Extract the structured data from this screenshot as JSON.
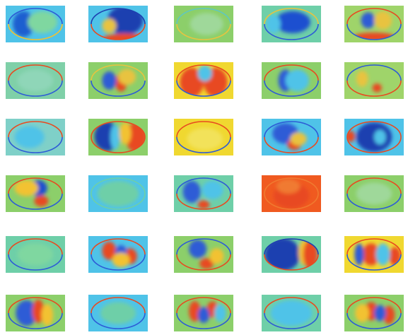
{
  "colormap": "jet",
  "grid": {
    "rows": 6,
    "cols": 5
  },
  "tiles": [
    {
      "bg": "#4fc3e8",
      "blobs": [
        [
          "#1f5fd0",
          0.3,
          0.5,
          0.18,
          0.35
        ],
        [
          "#7fd7a0",
          0.62,
          0.45,
          0.25,
          0.3
        ]
      ],
      "rim": [
        "#2d5bd6",
        "#f2c230"
      ]
    },
    {
      "bg": "#4fc3e8",
      "blobs": [
        [
          "#1d3fb0",
          0.62,
          0.4,
          0.3,
          0.4
        ],
        [
          "#e8c340",
          0.35,
          0.55,
          0.12,
          0.2
        ],
        [
          "#e84a20",
          0.6,
          0.88,
          0.35,
          0.12
        ]
      ],
      "rim": [
        "#1d3fb0",
        "#e84a20"
      ]
    },
    {
      "bg": "#8ccf6a",
      "blobs": [
        [
          "#9fd89a",
          0.55,
          0.5,
          0.28,
          0.3
        ]
      ],
      "rim": [
        "#5fc7c0",
        "#e8c340"
      ]
    },
    {
      "bg": "#6ecfa8",
      "blobs": [
        [
          "#1f4fd0",
          0.52,
          0.45,
          0.3,
          0.3
        ],
        [
          "#4fc3e8",
          0.2,
          0.5,
          0.12,
          0.25
        ]
      ],
      "rim": [
        "#e8c340",
        "#2d5bd6"
      ]
    },
    {
      "bg": "#9fd46a",
      "blobs": [
        [
          "#e84a20",
          0.5,
          0.85,
          0.35,
          0.12
        ],
        [
          "#2d5bd6",
          0.4,
          0.4,
          0.12,
          0.22
        ],
        [
          "#e8c340",
          0.65,
          0.4,
          0.15,
          0.25
        ]
      ],
      "rim": [
        "#e84a20",
        "#2d5bd6"
      ]
    },
    {
      "bg": "#7fd0a8",
      "blobs": [
        [
          "#8fd6b8",
          0.5,
          0.5,
          0.3,
          0.3
        ]
      ],
      "rim": [
        "#e84a20",
        "#2d5bd6"
      ]
    },
    {
      "bg": "#8ccf6a",
      "blobs": [
        [
          "#e84a20",
          0.55,
          0.55,
          0.1,
          0.25
        ],
        [
          "#2d5bd6",
          0.35,
          0.5,
          0.12,
          0.25
        ],
        [
          "#e8c340",
          0.65,
          0.4,
          0.15,
          0.22
        ]
      ],
      "rim": [
        "#e8c340",
        "#2d5bd6"
      ]
    },
    {
      "bg": "#f0d830",
      "blobs": [
        [
          "#e84a20",
          0.3,
          0.55,
          0.2,
          0.4
        ],
        [
          "#e84a20",
          0.7,
          0.55,
          0.2,
          0.4
        ],
        [
          "#4fc3e8",
          0.52,
          0.3,
          0.12,
          0.22
        ]
      ],
      "rim": [
        "#e84a20",
        "#2d5bd6"
      ]
    },
    {
      "bg": "#8ccf6a",
      "blobs": [
        [
          "#2d5bd6",
          0.4,
          0.5,
          0.12,
          0.3
        ],
        [
          "#4fc3e8",
          0.6,
          0.5,
          0.2,
          0.3
        ]
      ],
      "rim": [
        "#e84a20",
        "#2d5bd6"
      ]
    },
    {
      "bg": "#9fd46a",
      "blobs": [
        [
          "#e8c340",
          0.3,
          0.45,
          0.1,
          0.22
        ],
        [
          "#e84a20",
          0.55,
          0.7,
          0.08,
          0.12
        ]
      ],
      "rim": [
        "#2d5bd6",
        "#e84a20"
      ]
    },
    {
      "bg": "#7fd0c8",
      "blobs": [
        [
          "#4fc3e8",
          0.4,
          0.5,
          0.25,
          0.3
        ]
      ],
      "rim": [
        "#e84a20",
        "#2d5bd6"
      ]
    },
    {
      "bg": "#8ccf6a",
      "blobs": [
        [
          "#1f3fb0",
          0.32,
          0.48,
          0.22,
          0.4
        ],
        [
          "#4fc3e8",
          0.45,
          0.5,
          0.08,
          0.35
        ],
        [
          "#e84a20",
          0.8,
          0.5,
          0.18,
          0.4
        ],
        [
          "#f2c230",
          0.62,
          0.4,
          0.1,
          0.3
        ]
      ],
      "rim": [
        "#e84a20",
        "#e84a20"
      ]
    },
    {
      "bg": "#f0d830",
      "blobs": [
        [
          "#f2e25a",
          0.52,
          0.55,
          0.3,
          0.3
        ]
      ],
      "rim": [
        "#e84a20",
        "#2d5bd6"
      ]
    },
    {
      "bg": "#4fc3e8",
      "blobs": [
        [
          "#2d5bd6",
          0.4,
          0.4,
          0.22,
          0.28
        ],
        [
          "#e84a20",
          0.55,
          0.7,
          0.12,
          0.15
        ],
        [
          "#e8c340",
          0.62,
          0.55,
          0.14,
          0.18
        ]
      ],
      "rim": [
        "#2d5bd6",
        "#e84a20"
      ]
    },
    {
      "bg": "#4fc3e8",
      "blobs": [
        [
          "#1f3fb0",
          0.5,
          0.5,
          0.3,
          0.4
        ],
        [
          "#e84a20",
          0.1,
          0.48,
          0.08,
          0.16
        ],
        [
          "#4fc3e8",
          0.6,
          0.5,
          0.1,
          0.2
        ]
      ],
      "rim": [
        "#e84a20",
        "#e84a20"
      ]
    },
    {
      "bg": "#8ccf6a",
      "blobs": [
        [
          "#1f4fd0",
          0.55,
          0.35,
          0.15,
          0.22
        ],
        [
          "#f2c230",
          0.35,
          0.35,
          0.2,
          0.22
        ],
        [
          "#e84a20",
          0.6,
          0.7,
          0.12,
          0.15
        ]
      ],
      "rim": [
        "#e84a20",
        "#2d5bd6"
      ]
    },
    {
      "bg": "#4fc3e8",
      "blobs": [
        [
          "#6ecfa8",
          0.5,
          0.5,
          0.35,
          0.35
        ]
      ],
      "rim": [
        "#6ecfa8",
        "#6ecfa8"
      ]
    },
    {
      "bg": "#6ecfa8",
      "blobs": [
        [
          "#2d5bd6",
          0.3,
          0.45,
          0.15,
          0.3
        ],
        [
          "#4fc3e8",
          0.65,
          0.4,
          0.18,
          0.25
        ],
        [
          "#e84a20",
          0.5,
          0.8,
          0.1,
          0.12
        ]
      ],
      "rim": [
        "#2d5bd6",
        "#e84a20"
      ]
    },
    {
      "bg": "#f05a20",
      "blobs": [
        [
          "#e84a20",
          0.5,
          0.55,
          0.3,
          0.35
        ],
        [
          "#f07a30",
          0.45,
          0.3,
          0.2,
          0.2
        ]
      ],
      "rim": [
        "#f07a30",
        "#f07a30"
      ]
    },
    {
      "bg": "#8ccf6a",
      "blobs": [
        [
          "#9fd89a",
          0.5,
          0.5,
          0.3,
          0.3
        ]
      ],
      "rim": [
        "#e84a20",
        "#2d5bd6"
      ]
    },
    {
      "bg": "#6ecfa8",
      "blobs": [
        [
          "#7fd7a0",
          0.5,
          0.5,
          0.3,
          0.3
        ]
      ],
      "rim": [
        "#e84a20",
        "#2d5bd6"
      ]
    },
    {
      "bg": "#4fc3e8",
      "blobs": [
        [
          "#e84a20",
          0.35,
          0.4,
          0.12,
          0.25
        ],
        [
          "#e84a20",
          0.7,
          0.55,
          0.12,
          0.22
        ],
        [
          "#2d5bd6",
          0.55,
          0.45,
          0.1,
          0.2
        ],
        [
          "#f2c230",
          0.55,
          0.65,
          0.15,
          0.2
        ]
      ],
      "rim": [
        "#e84a20",
        "#2d5bd6"
      ]
    },
    {
      "bg": "#8ccf6a",
      "blobs": [
        [
          "#2d5bd6",
          0.4,
          0.35,
          0.15,
          0.25
        ],
        [
          "#e84a20",
          0.55,
          0.75,
          0.12,
          0.15
        ],
        [
          "#f2c230",
          0.72,
          0.55,
          0.12,
          0.22
        ]
      ],
      "rim": [
        "#2d5bd6",
        "#e84a20"
      ]
    },
    {
      "bg": "#6ecfa8",
      "blobs": [
        [
          "#1f3fb0",
          0.35,
          0.5,
          0.3,
          0.45
        ],
        [
          "#f2c230",
          0.72,
          0.45,
          0.1,
          0.35
        ],
        [
          "#e84a20",
          0.82,
          0.5,
          0.12,
          0.4
        ]
      ],
      "rim": [
        "#1f3fb0",
        "#e84a20"
      ]
    },
    {
      "bg": "#f0d830",
      "blobs": [
        [
          "#e84a20",
          0.45,
          0.5,
          0.15,
          0.3
        ],
        [
          "#e84a20",
          0.85,
          0.55,
          0.1,
          0.25
        ],
        [
          "#2d5bd6",
          0.25,
          0.5,
          0.08,
          0.3
        ],
        [
          "#4fc3e8",
          0.65,
          0.5,
          0.12,
          0.3
        ]
      ],
      "rim": [
        "#e84a20",
        "#2d5bd6"
      ]
    },
    {
      "bg": "#8ccf6a",
      "blobs": [
        [
          "#2d5bd6",
          0.35,
          0.5,
          0.18,
          0.35
        ],
        [
          "#e84a20",
          0.55,
          0.45,
          0.1,
          0.32
        ],
        [
          "#f2c230",
          0.7,
          0.55,
          0.1,
          0.3
        ]
      ],
      "rim": [
        "#e84a20",
        "#2d5bd6"
      ]
    },
    {
      "bg": "#4fc3e8",
      "blobs": [
        [
          "#6ecfa8",
          0.5,
          0.5,
          0.3,
          0.3
        ]
      ],
      "rim": [
        "#e84a20",
        "#2d5bd6"
      ]
    },
    {
      "bg": "#8ccf6a",
      "blobs": [
        [
          "#e84a20",
          0.35,
          0.45,
          0.1,
          0.28
        ],
        [
          "#e84a20",
          0.65,
          0.4,
          0.1,
          0.22
        ],
        [
          "#2d5bd6",
          0.5,
          0.55,
          0.1,
          0.22
        ],
        [
          "#4fc3e8",
          0.78,
          0.5,
          0.1,
          0.25
        ]
      ],
      "rim": [
        "#e84a20",
        "#2d5bd6"
      ]
    },
    {
      "bg": "#6ecfa8",
      "blobs": [
        [
          "#4fc3e8",
          0.5,
          0.5,
          0.35,
          0.35
        ]
      ],
      "rim": [
        "#e84a20",
        "#2d5bd6"
      ]
    },
    {
      "bg": "#8ccf6a",
      "blobs": [
        [
          "#e84a20",
          0.45,
          0.45,
          0.12,
          0.25
        ],
        [
          "#e84a20",
          0.75,
          0.55,
          0.1,
          0.25
        ],
        [
          "#2d5bd6",
          0.6,
          0.5,
          0.1,
          0.22
        ],
        [
          "#f2c230",
          0.3,
          0.5,
          0.12,
          0.25
        ]
      ],
      "rim": [
        "#e84a20",
        "#2d5bd6"
      ]
    }
  ]
}
